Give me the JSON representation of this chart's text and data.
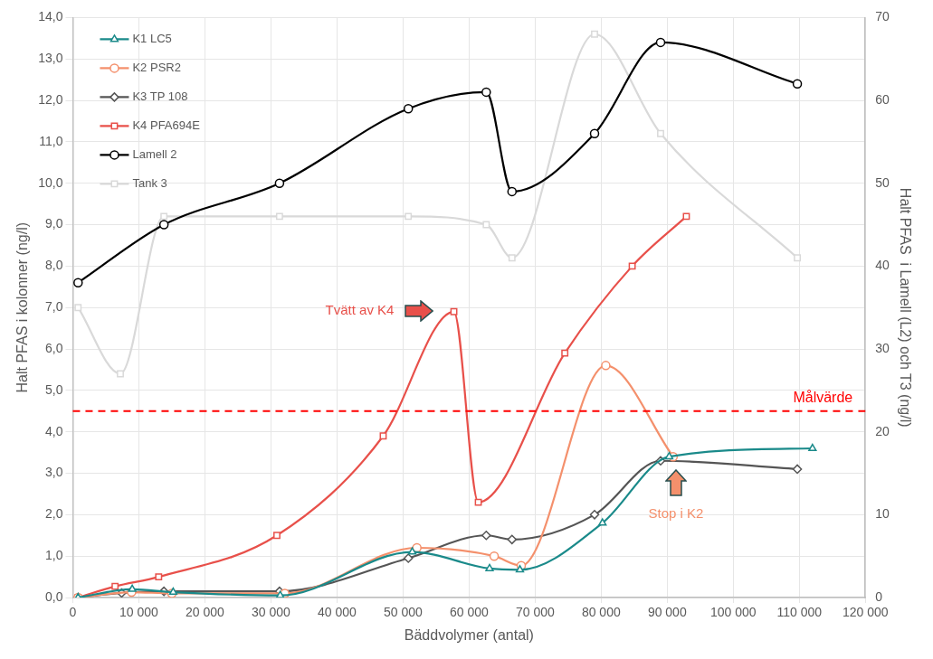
{
  "chart_data": {
    "type": "line",
    "xlabel": "Bäddvolymer (antal)",
    "ylabel": "Halt PFAS i kolonner (ng/l)",
    "y2label": "Halt PFAS  i Lamell (L2) och T3 (ng/l)",
    "xlim": [
      0,
      120000
    ],
    "xticks": [
      {
        "value": 0,
        "label": "0"
      },
      {
        "value": 10000,
        "label": "10 000"
      },
      {
        "value": 20000,
        "label": "20 000"
      },
      {
        "value": 30000,
        "label": "30 000"
      },
      {
        "value": 40000,
        "label": "40 000"
      },
      {
        "value": 50000,
        "label": "50 000"
      },
      {
        "value": 60000,
        "label": "60 000"
      },
      {
        "value": 70000,
        "label": "70 000"
      },
      {
        "value": 80000,
        "label": "80 000"
      },
      {
        "value": 90000,
        "label": "90 000"
      },
      {
        "value": 100000,
        "label": "100 000"
      },
      {
        "value": 110000,
        "label": "110 000"
      },
      {
        "value": 120000,
        "label": "120 000"
      }
    ],
    "ylim": [
      0,
      14
    ],
    "yticks": [
      {
        "value": 0,
        "label": "0,0"
      },
      {
        "value": 1,
        "label": "1,0"
      },
      {
        "value": 2,
        "label": "2,0"
      },
      {
        "value": 3,
        "label": "3,0"
      },
      {
        "value": 4,
        "label": "4,0"
      },
      {
        "value": 5,
        "label": "5,0"
      },
      {
        "value": 6,
        "label": "6,0"
      },
      {
        "value": 7,
        "label": "7,0"
      },
      {
        "value": 8,
        "label": "8,0"
      },
      {
        "value": 9,
        "label": "9,0"
      },
      {
        "value": 10,
        "label": "10,0"
      },
      {
        "value": 11,
        "label": "11,0"
      },
      {
        "value": 12,
        "label": "12,0"
      },
      {
        "value": 13,
        "label": "13,0"
      },
      {
        "value": 14,
        "label": "14,0"
      }
    ],
    "y2lim": [
      0,
      70
    ],
    "y2ticks": [
      0,
      10,
      20,
      30,
      40,
      50,
      60,
      70
    ],
    "grid": true,
    "legend": "top left",
    "line_style": "solid",
    "ref_lines": [
      {
        "axis": "y",
        "value": 4.5,
        "label": "Målvärde",
        "color": "#ff0000",
        "line_style": "dashed"
      }
    ],
    "annotations": [
      "Tvätt av K4",
      "Stop i K2"
    ],
    "series": [
      {
        "name": "K1 LC5",
        "color": "#1a8a8a",
        "marker": "triangle",
        "x": [
          800,
          9000,
          15200,
          31400,
          51400,
          63100,
          67700,
          80200,
          90300,
          112000
        ],
        "values": [
          0,
          0.2,
          0.13,
          0.05,
          1.1,
          0.7,
          0.67,
          1.8,
          3.4,
          3.6
        ]
      },
      {
        "name": "K2 PSR2",
        "color": "#f4906c",
        "marker": "circle",
        "x": [
          800,
          8900,
          15000,
          32100,
          52100,
          63800,
          67900,
          80700,
          90900
        ],
        "values": [
          0,
          0.13,
          0.1,
          0.1,
          1.2,
          1.0,
          0.77,
          5.6,
          3.4
        ]
      },
      {
        "name": "K3 TP 108",
        "color": "#555555",
        "marker": "diamond",
        "x": [
          800,
          7400,
          13800,
          31300,
          50800,
          62600,
          66500,
          79000,
          89000,
          109700
        ],
        "values": [
          0,
          0.11,
          0.15,
          0.15,
          0.95,
          1.5,
          1.4,
          2.0,
          3.3,
          3.1
        ]
      },
      {
        "name": "K4 PFA694E",
        "color": "#e8504a",
        "marker": "square",
        "x": [
          800,
          6400,
          13000,
          30900,
          47000,
          57700,
          61400,
          74500,
          84700,
          92900
        ],
        "values": [
          0,
          0.27,
          0.5,
          1.5,
          3.9,
          6.9,
          2.3,
          5.9,
          8.0,
          9.2
        ]
      },
      {
        "name": "Lamell 2",
        "color": "#000000",
        "marker": "circle",
        "axis": "y2",
        "x": [
          800,
          13800,
          31300,
          50800,
          62600,
          66500,
          79000,
          89000,
          109700
        ],
        "values": [
          38,
          45,
          50,
          59,
          61,
          49,
          56,
          67,
          62
        ]
      },
      {
        "name": "Tank 3",
        "color": "#d9d9d9",
        "marker": "square",
        "axis": "y2",
        "x": [
          800,
          7200,
          13800,
          31300,
          50800,
          62600,
          66500,
          79000,
          89000,
          109700
        ],
        "values": [
          35,
          27,
          46,
          46,
          46,
          45,
          41,
          68,
          56,
          41
        ]
      }
    ]
  }
}
